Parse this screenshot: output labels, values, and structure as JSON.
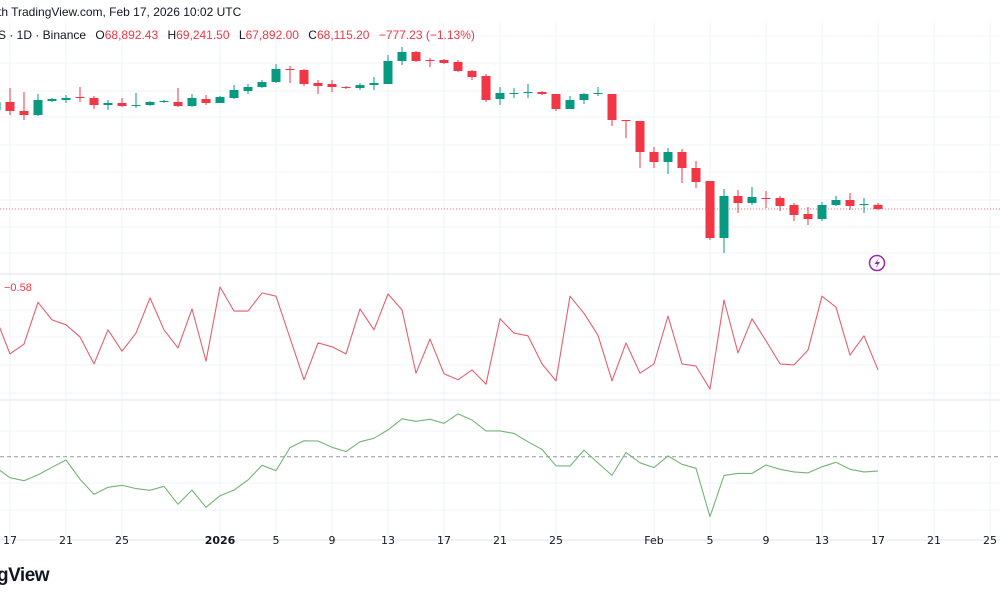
{
  "header": {
    "published": "th TradingView.com, Feb 17, 2026 10:02 UTC",
    "symbol": "S · 1D · Binance",
    "open_label": "O",
    "open": "68,892.43",
    "high_label": "H",
    "high": "69,241.50",
    "low_label": "L",
    "low": "67,892.00",
    "close_label": "C",
    "close": "68,115.20",
    "change": "−777.23 (−1.13%)"
  },
  "oscillator_label": "−0.58",
  "logo_text": "gView",
  "colors": {
    "up": "#089981",
    "down": "#f23645",
    "oscillator": "#e5606e",
    "rsi": "#76b377",
    "alert_icon": "#9c27b0"
  },
  "icons": {
    "alert": "lightning-icon"
  },
  "time_axis": [
    {
      "date": "2025-12-17",
      "label": "17"
    },
    {
      "date": "2025-12-21",
      "label": "21"
    },
    {
      "date": "2025-12-25",
      "label": "25"
    },
    {
      "date": "2026-01-01",
      "label": "2026",
      "bold": true
    },
    {
      "date": "2026-01-05",
      "label": "5"
    },
    {
      "date": "2026-01-09",
      "label": "9"
    },
    {
      "date": "2026-01-13",
      "label": "13"
    },
    {
      "date": "2026-01-17",
      "label": "17"
    },
    {
      "date": "2026-01-21",
      "label": "21"
    },
    {
      "date": "2026-01-25",
      "label": "25"
    },
    {
      "date": "2026-02-01",
      "label": "Feb"
    },
    {
      "date": "2026-02-05",
      "label": "5"
    },
    {
      "date": "2026-02-09",
      "label": "9"
    },
    {
      "date": "2026-02-13",
      "label": "13"
    },
    {
      "date": "2026-02-17",
      "label": "17"
    },
    {
      "date": "2026-02-21",
      "label": "21"
    },
    {
      "date": "2026-02-25",
      "label": "25"
    }
  ],
  "chart_data": [
    {
      "type": "candlestick",
      "interval": "1D",
      "exchange": "Binance",
      "start_date": "2025-12-16",
      "ohlc_fields": [
        "open",
        "high",
        "low",
        "close"
      ],
      "last_price_line": 68115.2,
      "candles": [
        [
          86826,
          88716,
          86448,
          88338
        ],
        [
          88338,
          90984,
          85881,
          86637
        ],
        [
          86637,
          90228,
          84936,
          85881
        ],
        [
          85881,
          89850,
          85692,
          88716
        ],
        [
          88527,
          89094,
          88338,
          88905
        ],
        [
          88716,
          89661,
          88149,
          89094
        ],
        [
          89283,
          91173,
          88338,
          89094
        ],
        [
          89094,
          89472,
          87015,
          87771
        ],
        [
          87771,
          88716,
          86826,
          88149
        ],
        [
          88149,
          89094,
          87393,
          87582
        ],
        [
          87582,
          90039,
          87204,
          87771
        ],
        [
          87771,
          88527,
          87582,
          88338
        ],
        [
          88338,
          88716,
          88149,
          88527
        ],
        [
          88338,
          90984,
          87393,
          87582
        ],
        [
          87582,
          89850,
          87393,
          89094
        ],
        [
          88905,
          89661,
          87771,
          88149
        ],
        [
          88149,
          89472,
          88149,
          89283
        ],
        [
          89094,
          91551,
          88905,
          90606
        ],
        [
          90417,
          91740,
          89850,
          91173
        ],
        [
          91173,
          92496,
          90984,
          92118
        ],
        [
          92118,
          95520,
          91929,
          94575
        ],
        [
          94575,
          95142,
          91929,
          94386
        ],
        [
          94386,
          94575,
          91362,
          91740
        ],
        [
          91929,
          92496,
          89850,
          91362
        ],
        [
          91740,
          92496,
          90228,
          91173
        ],
        [
          91173,
          91362,
          90795,
          90984
        ],
        [
          90984,
          91929,
          90606,
          91551
        ],
        [
          91551,
          93063,
          90606,
          91929
        ],
        [
          91740,
          97221,
          91740,
          96087
        ],
        [
          96087,
          98733,
          95331,
          97788
        ],
        [
          97788,
          97977,
          95898,
          96087
        ],
        [
          96276,
          96654,
          94953,
          96087
        ],
        [
          96276,
          96465,
          95520,
          95709
        ],
        [
          95898,
          96276,
          94008,
          94197
        ],
        [
          94197,
          94386,
          92496,
          93063
        ],
        [
          93252,
          93630,
          88338,
          88716
        ],
        [
          88905,
          91173,
          87771,
          90039
        ],
        [
          89944,
          90984,
          89094,
          90039
        ],
        [
          90039,
          91740,
          89094,
          90228
        ],
        [
          90228,
          90417,
          89661,
          89850
        ],
        [
          89850,
          89850,
          86637,
          87015
        ],
        [
          87015,
          89472,
          87015,
          88716
        ],
        [
          88716,
          90039,
          87960,
          89850
        ],
        [
          89944,
          91173,
          89472,
          90039
        ],
        [
          89850,
          89850,
          83802,
          84936
        ],
        [
          84936,
          84936,
          81534,
          84747
        ],
        [
          84747,
          84747,
          75864,
          78888
        ],
        [
          78888,
          79833,
          75864,
          76998
        ],
        [
          76998,
          79644,
          74730,
          78888
        ],
        [
          78888,
          79455,
          73029,
          75864
        ],
        [
          75864,
          77187,
          72084,
          73218
        ],
        [
          73407,
          73407,
          62256,
          62634
        ],
        [
          62634,
          71895,
          59799,
          70572
        ],
        [
          70572,
          71706,
          67359,
          69249
        ],
        [
          69249,
          72273,
          68871,
          70383
        ],
        [
          70194,
          71517,
          68304,
          70005
        ],
        [
          70194,
          70572,
          67737,
          68682
        ],
        [
          68871,
          69249,
          65847,
          66981
        ],
        [
          67170,
          68493,
          65091,
          66225
        ],
        [
          66225,
          69438,
          65847,
          68871
        ],
        [
          68871,
          70572,
          68682,
          69816
        ],
        [
          69816,
          71139,
          67926,
          68682
        ],
        [
          68965,
          70194,
          67359,
          69060
        ],
        [
          68892.43,
          69241.5,
          67892.0,
          68115.2
        ]
      ]
    },
    {
      "type": "line",
      "start_date": "2025-12-16",
      "last_value": -0.58,
      "values": [
        0.36,
        -0.29,
        -0.11,
        0.65,
        0.33,
        0.24,
        0.02,
        -0.47,
        0.15,
        -0.24,
        0.09,
        0.73,
        0.15,
        -0.18,
        0.53,
        -0.42,
        0.93,
        0.49,
        0.49,
        0.82,
        0.76,
        0.0,
        -0.76,
        -0.09,
        -0.16,
        -0.29,
        0.53,
        0.15,
        0.8,
        0.51,
        -0.64,
        -0.02,
        -0.65,
        -0.76,
        -0.58,
        -0.84,
        0.35,
        0.09,
        0.04,
        -0.47,
        -0.78,
        0.76,
        0.45,
        0.05,
        -0.78,
        -0.09,
        -0.64,
        -0.47,
        0.4,
        -0.47,
        -0.51,
        -0.93,
        0.69,
        -0.27,
        0.35,
        -0.05,
        -0.47,
        -0.49,
        -0.22,
        0.76,
        0.56,
        -0.31,
        0.04,
        -0.58
      ]
    },
    {
      "type": "line",
      "start_date": "2025-12-16",
      "reference_line": 50,
      "values": [
        45.7,
        41.7,
        40.5,
        42.8,
        45.8,
        48.7,
        41.1,
        35.1,
        37.9,
        38.7,
        37.4,
        36.7,
        38.3,
        31.2,
        36.8,
        30.0,
        34.6,
        36.8,
        40.8,
        46.6,
        44.5,
        53.6,
        56.3,
        56.2,
        53.7,
        52.0,
        55.9,
        57.3,
        60.6,
        65.0,
        64.0,
        64.8,
        63.2,
        66.9,
        64.5,
        60.2,
        60.2,
        59.2,
        55.9,
        52.9,
        46.4,
        46.3,
        52.6,
        47.5,
        42.6,
        51.7,
        47.6,
        45.7,
        50.3,
        47.0,
        45.4,
        26.3,
        42.6,
        43.4,
        43.4,
        46.7,
        45.0,
        44.0,
        43.6,
        46.0,
        47.8,
        45.0,
        44.0,
        44.3
      ]
    }
  ]
}
